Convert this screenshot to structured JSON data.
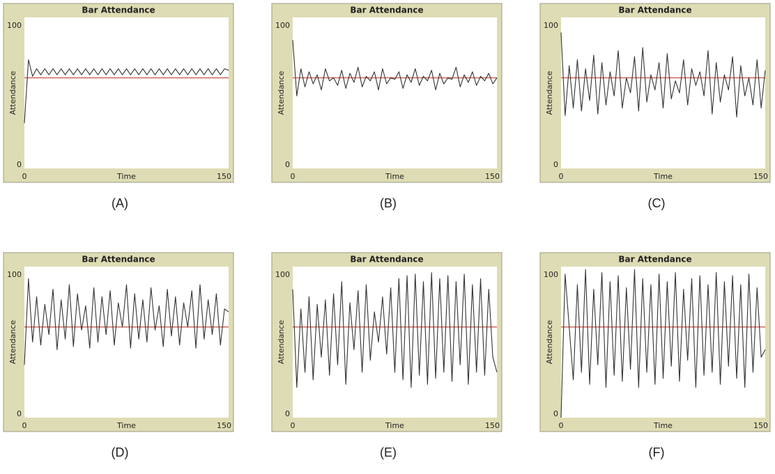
{
  "chart_data": [
    {
      "type": "line",
      "title": "Bar Attendance",
      "caption": "(A)",
      "x_label": "Time",
      "y_label": "Attendance",
      "xlim": [
        0,
        150
      ],
      "ylim": [
        0,
        100
      ],
      "xticks": [
        0,
        150
      ],
      "yticks": [
        0,
        100
      ],
      "grid": false,
      "reference_line": {
        "value": 60,
        "color": "#c0392b"
      },
      "x": [
        0,
        3,
        6,
        9,
        12,
        15,
        18,
        21,
        24,
        27,
        30,
        33,
        36,
        39,
        42,
        45,
        48,
        51,
        54,
        57,
        60,
        63,
        66,
        69,
        72,
        75,
        78,
        81,
        84,
        87,
        90,
        93,
        96,
        99,
        102,
        105,
        108,
        111,
        114,
        117,
        120,
        123,
        126,
        129,
        132,
        135,
        138,
        141,
        144,
        147,
        150
      ],
      "series": [
        {
          "color": "#333333",
          "values": [
            30,
            72,
            61,
            66,
            62,
            66,
            62,
            66,
            62,
            66,
            62,
            66,
            62,
            66,
            62,
            66,
            62,
            66,
            62,
            66,
            62,
            66,
            62,
            66,
            62,
            66,
            62,
            66,
            62,
            66,
            62,
            66,
            62,
            66,
            62,
            66,
            62,
            66,
            62,
            66,
            62,
            66,
            62,
            66,
            62,
            66,
            62,
            66,
            62,
            66,
            65
          ]
        }
      ]
    },
    {
      "type": "line",
      "title": "Bar Attendance",
      "caption": "(B)",
      "x_label": "Time",
      "y_label": "Attendance",
      "xlim": [
        0,
        150
      ],
      "ylim": [
        0,
        100
      ],
      "xticks": [
        0,
        150
      ],
      "yticks": [
        0,
        100
      ],
      "grid": false,
      "reference_line": {
        "value": 60,
        "color": "#c0392b"
      },
      "x": [
        0,
        3,
        6,
        9,
        12,
        15,
        18,
        21,
        24,
        27,
        30,
        33,
        36,
        39,
        42,
        45,
        48,
        51,
        54,
        57,
        60,
        63,
        66,
        69,
        72,
        75,
        78,
        81,
        84,
        87,
        90,
        93,
        96,
        99,
        102,
        105,
        108,
        111,
        114,
        117,
        120,
        123,
        126,
        129,
        132,
        135,
        138,
        141,
        144,
        147,
        150
      ],
      "series": [
        {
          "color": "#333333",
          "values": [
            85,
            48,
            66,
            54,
            64,
            56,
            62,
            52,
            66,
            58,
            60,
            55,
            65,
            53,
            63,
            57,
            67,
            54,
            61,
            58,
            64,
            52,
            66,
            56,
            60,
            59,
            64,
            53,
            62,
            57,
            66,
            55,
            61,
            58,
            65,
            52,
            63,
            56,
            60,
            59,
            67,
            54,
            62,
            57,
            64,
            55,
            61,
            58,
            63,
            56,
            60
          ]
        }
      ]
    },
    {
      "type": "line",
      "title": "Bar Attendance",
      "caption": "(C)",
      "x_label": "Time",
      "y_label": "Attendance",
      "xlim": [
        0,
        150
      ],
      "ylim": [
        0,
        100
      ],
      "xticks": [
        0,
        150
      ],
      "yticks": [
        0,
        100
      ],
      "grid": false,
      "reference_line": {
        "value": 60,
        "color": "#c0392b"
      },
      "x": [
        0,
        3,
        6,
        9,
        12,
        15,
        18,
        21,
        24,
        27,
        30,
        33,
        36,
        39,
        42,
        45,
        48,
        51,
        54,
        57,
        60,
        63,
        66,
        69,
        72,
        75,
        78,
        81,
        84,
        87,
        90,
        93,
        96,
        99,
        102,
        105,
        108,
        111,
        114,
        117,
        120,
        123,
        126,
        129,
        132,
        135,
        138,
        141,
        144,
        147,
        150
      ],
      "series": [
        {
          "color": "#333333",
          "values": [
            90,
            35,
            68,
            40,
            72,
            38,
            66,
            45,
            75,
            36,
            70,
            42,
            64,
            48,
            78,
            40,
            60,
            50,
            74,
            38,
            80,
            44,
            62,
            52,
            70,
            40,
            76,
            46,
            58,
            50,
            72,
            42,
            66,
            55,
            64,
            48,
            78,
            36,
            70,
            44,
            62,
            52,
            74,
            34,
            68,
            48,
            60,
            42,
            72,
            40,
            65
          ]
        }
      ]
    },
    {
      "type": "line",
      "title": "Bar Attendance",
      "caption": "(D)",
      "x_label": "Time",
      "y_label": "Attendance",
      "xlim": [
        0,
        150
      ],
      "ylim": [
        0,
        100
      ],
      "xticks": [
        0,
        150
      ],
      "yticks": [
        0,
        100
      ],
      "grid": false,
      "reference_line": {
        "value": 60,
        "color": "#c0392b"
      },
      "x": [
        0,
        3,
        6,
        9,
        12,
        15,
        18,
        21,
        24,
        27,
        30,
        33,
        36,
        39,
        42,
        45,
        48,
        51,
        54,
        57,
        60,
        63,
        66,
        69,
        72,
        75,
        78,
        81,
        84,
        87,
        90,
        93,
        96,
        99,
        102,
        105,
        108,
        111,
        114,
        117,
        120,
        123,
        126,
        129,
        132,
        135,
        138,
        141,
        144,
        147,
        150
      ],
      "series": [
        {
          "color": "#333333",
          "values": [
            35,
            92,
            50,
            80,
            48,
            75,
            55,
            85,
            45,
            78,
            52,
            88,
            47,
            82,
            58,
            74,
            46,
            86,
            50,
            80,
            55,
            84,
            48,
            76,
            60,
            88,
            46,
            82,
            52,
            78,
            50,
            86,
            58,
            74,
            47,
            85,
            54,
            80,
            48,
            76,
            60,
            84,
            46,
            88,
            52,
            78,
            55,
            82,
            48,
            72,
            70
          ]
        }
      ]
    },
    {
      "type": "line",
      "title": "Bar Attendance",
      "caption": "(E)",
      "x_label": "Time",
      "y_label": "Attendance",
      "xlim": [
        0,
        150
      ],
      "ylim": [
        0,
        100
      ],
      "xticks": [
        0,
        150
      ],
      "yticks": [
        0,
        100
      ],
      "grid": false,
      "reference_line": {
        "value": 60,
        "color": "#c0392b"
      },
      "x": [
        0,
        3,
        6,
        9,
        12,
        15,
        18,
        21,
        24,
        27,
        30,
        33,
        36,
        39,
        42,
        45,
        48,
        51,
        54,
        57,
        60,
        63,
        66,
        69,
        72,
        75,
        78,
        81,
        84,
        87,
        90,
        93,
        96,
        99,
        102,
        105,
        108,
        111,
        114,
        117,
        120,
        123,
        126,
        129,
        132,
        135,
        138,
        141,
        144,
        147,
        150
      ],
      "series": [
        {
          "color": "#333333",
          "values": [
            85,
            20,
            72,
            30,
            80,
            25,
            75,
            40,
            78,
            28,
            82,
            35,
            90,
            22,
            76,
            45,
            84,
            30,
            88,
            38,
            70,
            50,
            80,
            42,
            86,
            30,
            92,
            25,
            94,
            20,
            95,
            28,
            90,
            22,
            96,
            26,
            92,
            30,
            94,
            24,
            90,
            35,
            95,
            22,
            88,
            30,
            92,
            28,
            85,
            40,
            30
          ]
        }
      ]
    },
    {
      "type": "line",
      "title": "Bar Attendance",
      "caption": "(F)",
      "x_label": "Time",
      "y_label": "Attendance",
      "xlim": [
        0,
        150
      ],
      "ylim": [
        0,
        100
      ],
      "xticks": [
        0,
        150
      ],
      "yticks": [
        0,
        100
      ],
      "grid": false,
      "reference_line": {
        "value": 60,
        "color": "#c0392b"
      },
      "x": [
        0,
        3,
        6,
        9,
        12,
        15,
        18,
        21,
        24,
        27,
        30,
        33,
        36,
        39,
        42,
        45,
        48,
        51,
        54,
        57,
        60,
        63,
        66,
        69,
        72,
        75,
        78,
        81,
        84,
        87,
        90,
        93,
        96,
        99,
        102,
        105,
        108,
        111,
        114,
        117,
        120,
        123,
        126,
        129,
        132,
        135,
        138,
        141,
        144,
        147,
        150
      ],
      "series": [
        {
          "color": "#333333",
          "values": [
            0,
            95,
            60,
            25,
            88,
            30,
            98,
            22,
            85,
            35,
            96,
            20,
            90,
            28,
            94,
            24,
            86,
            32,
            98,
            20,
            92,
            30,
            88,
            22,
            95,
            26,
            90,
            34,
            96,
            24,
            85,
            38,
            92,
            20,
            94,
            28,
            88,
            30,
            96,
            22,
            90,
            34,
            94,
            26,
            88,
            20,
            95,
            30,
            86,
            40,
            45
          ]
        }
      ]
    }
  ]
}
